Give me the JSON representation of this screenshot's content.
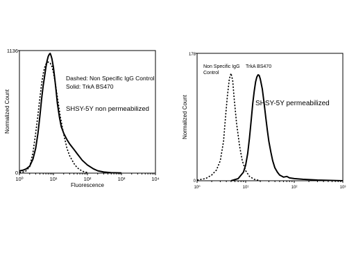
{
  "chart_data": [
    {
      "type": "line",
      "x_scale": "log",
      "xlim": [
        1,
        10000
      ],
      "ylim": [
        0,
        1136
      ],
      "xlabel": "Fluorescence",
      "ylabel": "Normalized Count",
      "y_ticks": [
        "0",
        "1136"
      ],
      "x_ticks": [
        "10⁰",
        "10¹",
        "10²",
        "10³",
        "10⁴"
      ],
      "legend": [
        "Dashed: Non Specific IgG Control",
        "Solid: TrkA BS470"
      ],
      "annotation": "SHSY-5Y non permeabilized",
      "series": [
        {
          "style": "solid",
          "x": [
            1,
            1.3,
            1.6,
            2,
            2.5,
            3,
            3.5,
            4,
            4.5,
            5,
            5.5,
            6,
            6.5,
            7,
            7.5,
            8,
            8.5,
            9,
            10,
            11,
            12,
            13,
            15,
            17,
            20,
            25,
            30,
            40,
            50,
            70,
            100,
            150,
            200,
            300,
            500,
            1000
          ],
          "y": [
            20,
            28,
            40,
            65,
            130,
            230,
            370,
            530,
            690,
            810,
            900,
            980,
            1040,
            1080,
            1100,
            1110,
            1090,
            1060,
            980,
            870,
            760,
            650,
            520,
            430,
            370,
            310,
            270,
            220,
            180,
            120,
            75,
            40,
            22,
            10,
            4,
            2
          ]
        },
        {
          "style": "dashed",
          "x": [
            1,
            1.5,
            2,
            2.5,
            3,
            3.5,
            4,
            4.5,
            5,
            5.5,
            6,
            7,
            8,
            9,
            10,
            11,
            12,
            14,
            16,
            20,
            25,
            30,
            40,
            50,
            70,
            100
          ],
          "y": [
            5,
            15,
            60,
            190,
            370,
            540,
            700,
            830,
            920,
            980,
            1010,
            1030,
            1020,
            990,
            930,
            860,
            780,
            640,
            520,
            360,
            230,
            160,
            90,
            50,
            18,
            5
          ]
        }
      ]
    },
    {
      "type": "line",
      "x_scale": "log",
      "xlim": [
        1,
        1000
      ],
      "ylim": [
        0,
        178
      ],
      "xlabel": "Fluorescence",
      "ylabel": "Normalized Count",
      "y_ticks": [
        "0",
        "178"
      ],
      "x_ticks": [
        "10⁰",
        "10¹",
        "10²",
        "10³"
      ],
      "labels": [
        "Non Specific IgG",
        "Control",
        "TrkA BS470"
      ],
      "annotation": "SHSY-5Y permeabilized",
      "series": [
        {
          "style": "dashed",
          "x": [
            1,
            1.5,
            2,
            2.5,
            3,
            3.5,
            3.8,
            4.2,
            4.6,
            5,
            5.4,
            5.8,
            6.5,
            7.5,
            8.5,
            10,
            12,
            15,
            20
          ],
          "y": [
            1,
            3,
            8,
            15,
            28,
            55,
            85,
            118,
            142,
            150,
            140,
            115,
            80,
            48,
            28,
            14,
            6,
            2,
            0
          ]
        },
        {
          "style": "solid",
          "x": [
            5,
            7,
            9,
            10,
            11,
            12,
            13,
            14,
            15,
            16,
            17,
            18,
            19,
            20,
            22,
            24,
            26,
            28,
            30,
            33,
            36,
            40,
            45,
            50,
            60,
            70,
            80,
            100,
            150,
            300,
            1000
          ],
          "y": [
            0,
            3,
            12,
            22,
            38,
            60,
            85,
            108,
            125,
            138,
            145,
            148,
            147,
            142,
            128,
            108,
            88,
            70,
            55,
            40,
            28,
            18,
            12,
            8,
            5,
            6,
            4,
            3,
            2,
            1,
            0
          ]
        }
      ]
    }
  ]
}
